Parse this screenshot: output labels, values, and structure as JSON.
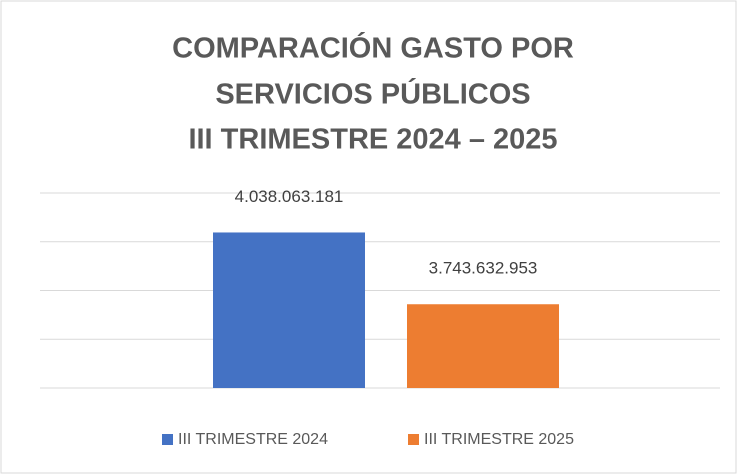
{
  "chart_data": {
    "type": "bar",
    "title": [
      "COMPARACIÓN GASTO POR",
      "SERVICIOS PÚBLICOS",
      "III TRIMESTRE 2024 – 2025"
    ],
    "categories": [
      null
    ],
    "series": [
      {
        "name": "III TRIMESTRE 2024",
        "color": "#4472c4",
        "values": [
          4038063181
        ],
        "value_labels": [
          "4.038.063.181"
        ]
      },
      {
        "name": "III TRIMESTRE 2025",
        "color": "#ed7d31",
        "values": [
          3743632953
        ],
        "value_labels": [
          "3.743.632.953"
        ]
      }
    ],
    "ylim": [
      3400000000,
      4200000000
    ],
    "yticks": [
      3400000000,
      3600000000,
      3800000000,
      4000000000,
      4200000000
    ],
    "grid": true,
    "legend": "bottom"
  }
}
